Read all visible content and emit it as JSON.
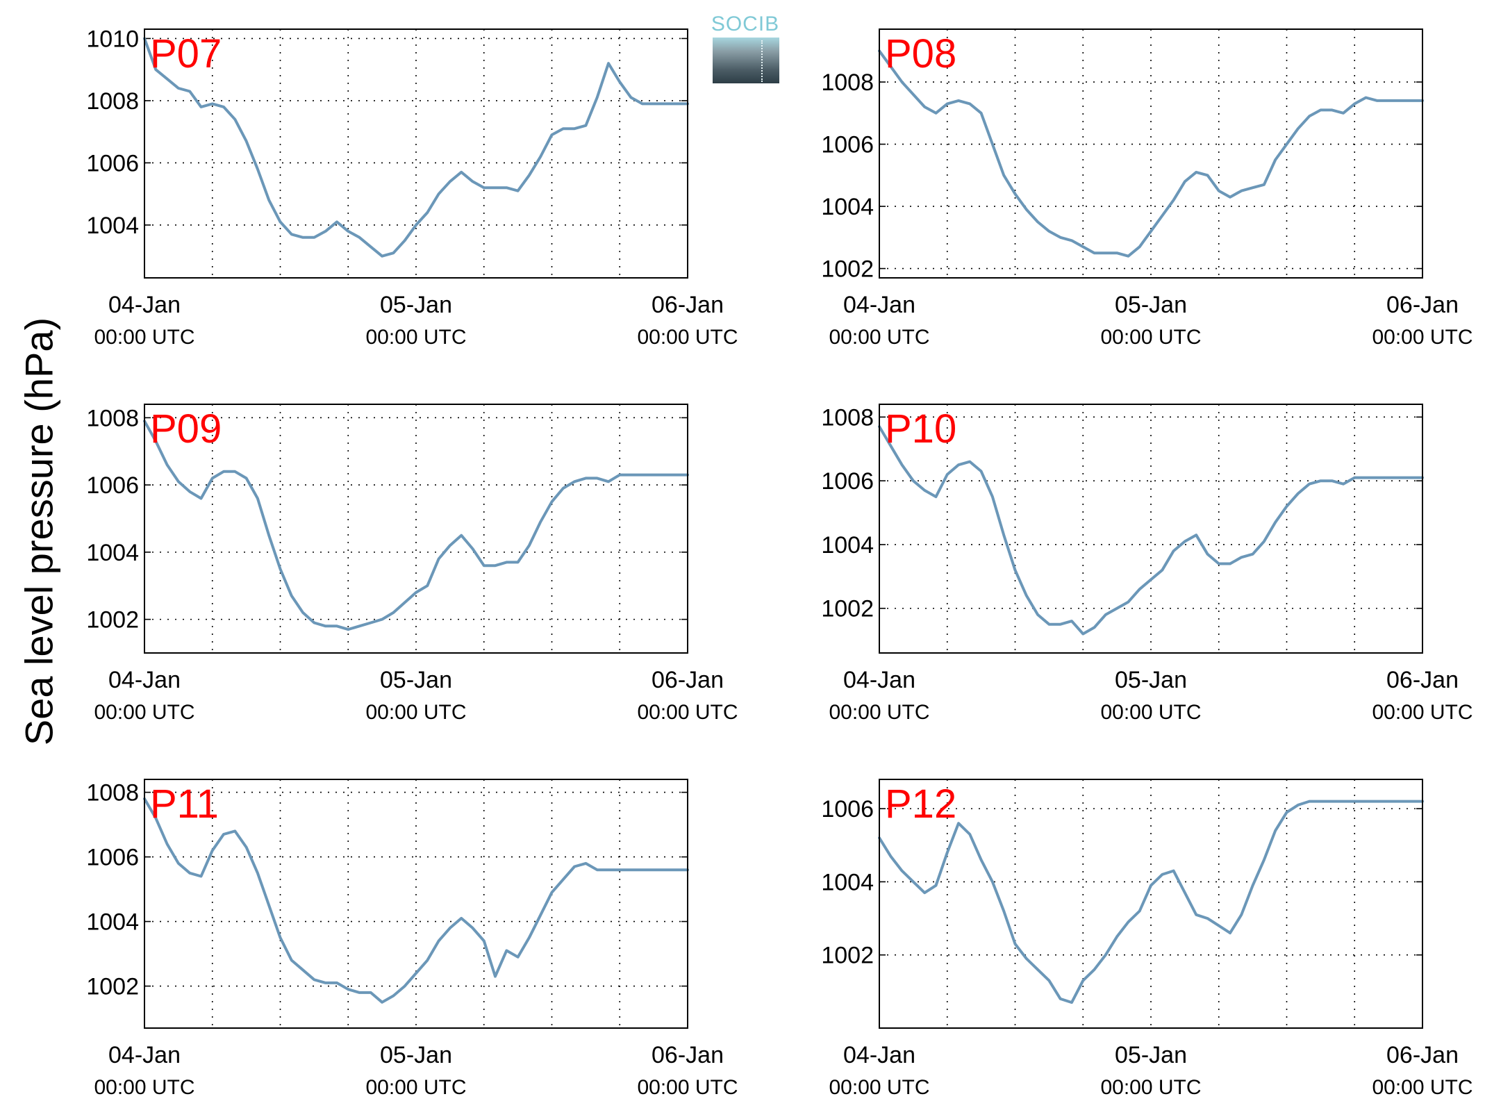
{
  "figure": {
    "ylabel": "Sea level pressure (hPa)",
    "logo_text": "SOCIB",
    "line_color": "#6b97b8",
    "label_color": "#ff0000"
  },
  "chart_data": [
    {
      "type": "line",
      "name": "P07",
      "ylim": [
        1002.3,
        1010.3
      ],
      "yticks": [
        1004,
        1006,
        1008,
        1010
      ],
      "xlim": [
        0,
        48
      ],
      "grid": true,
      "xticks": [
        {
          "date": "04-Jan",
          "time": "00:00 UTC"
        },
        {
          "date": "05-Jan",
          "time": "00:00 UTC"
        },
        {
          "date": "06-Jan",
          "time": "00:00 UTC"
        }
      ],
      "x": [
        0,
        1,
        2,
        3,
        4,
        5,
        6,
        7,
        8,
        9,
        10,
        11,
        12,
        13,
        14,
        15,
        16,
        17,
        18,
        19,
        20,
        21,
        22,
        23,
        24,
        25,
        26,
        27,
        28,
        29,
        30,
        31,
        32,
        33,
        34,
        35,
        36,
        37,
        38,
        39,
        40,
        41,
        42,
        43,
        44,
        44.5,
        45,
        45.5,
        46,
        47,
        48
      ],
      "y": [
        1010,
        1009,
        1008.7,
        1008.4,
        1008.3,
        1007.8,
        1007.9,
        1007.8,
        1007.4,
        1006.7,
        1005.8,
        1004.8,
        1004.1,
        1003.7,
        1003.6,
        1003.6,
        1003.8,
        1004.1,
        1003.8,
        1003.6,
        1003.3,
        1003,
        1003.1,
        1003.5,
        1004,
        1004.4,
        1005,
        1005.4,
        1005.7,
        1005.4,
        1005.2,
        1005.2,
        1005.2,
        1005.1,
        1005.6,
        1006.2,
        1006.9,
        1007.1,
        1007.1,
        1007.2,
        1008.1,
        1009.2,
        1008.6,
        1008.1,
        1007.9,
        1007.9,
        1007.9,
        1007.9,
        1007.9,
        1007.9,
        1007.9
      ]
    },
    {
      "type": "line",
      "name": "P08",
      "ylim": [
        1001.7,
        1009.7
      ],
      "yticks": [
        1002,
        1004,
        1006,
        1008
      ],
      "xlim": [
        0,
        48
      ],
      "grid": true,
      "xticks": [
        {
          "date": "04-Jan",
          "time": "00:00 UTC"
        },
        {
          "date": "05-Jan",
          "time": "00:00 UTC"
        },
        {
          "date": "06-Jan",
          "time": "00:00 UTC"
        }
      ],
      "x": [
        0,
        1,
        2,
        3,
        4,
        5,
        6,
        7,
        8,
        9,
        10,
        11,
        12,
        13,
        14,
        15,
        16,
        17,
        18,
        19,
        20,
        21,
        22,
        23,
        24,
        25,
        26,
        27,
        28,
        29,
        30,
        31,
        32,
        33,
        34,
        35,
        36,
        37,
        38,
        39,
        40,
        41,
        42,
        43,
        44,
        45,
        46,
        47,
        48
      ],
      "y": [
        1009,
        1008.5,
        1008,
        1007.6,
        1007.2,
        1007,
        1007.3,
        1007.4,
        1007.3,
        1007,
        1006,
        1005,
        1004.4,
        1003.9,
        1003.5,
        1003.2,
        1003,
        1002.9,
        1002.7,
        1002.5,
        1002.5,
        1002.5,
        1002.4,
        1002.7,
        1003.2,
        1003.7,
        1004.2,
        1004.8,
        1005.1,
        1005,
        1004.5,
        1004.3,
        1004.5,
        1004.6,
        1004.7,
        1005.5,
        1006,
        1006.5,
        1006.9,
        1007.1,
        1007.1,
        1007,
        1007.3,
        1007.5,
        1007.4,
        1007.4,
        1007.4,
        1007.4,
        1007.4
      ]
    },
    {
      "type": "line",
      "name": "P09",
      "ylim": [
        1001,
        1008.4
      ],
      "yticks": [
        1002,
        1004,
        1006,
        1008
      ],
      "xlim": [
        0,
        48
      ],
      "grid": true,
      "xticks": [
        {
          "date": "04-Jan",
          "time": "00:00 UTC"
        },
        {
          "date": "05-Jan",
          "time": "00:00 UTC"
        },
        {
          "date": "06-Jan",
          "time": "00:00 UTC"
        }
      ],
      "x": [
        0,
        1,
        2,
        3,
        4,
        5,
        6,
        7,
        8,
        9,
        10,
        11,
        12,
        13,
        14,
        15,
        16,
        17,
        18,
        19,
        20,
        21,
        22,
        23,
        24,
        25,
        26,
        27,
        28,
        29,
        30,
        31,
        32,
        33,
        34,
        35,
        36,
        37,
        38,
        39,
        40,
        41,
        42,
        43,
        44,
        45,
        46,
        47,
        48
      ],
      "y": [
        1007.9,
        1007.3,
        1006.6,
        1006.1,
        1005.8,
        1005.6,
        1006.2,
        1006.4,
        1006.4,
        1006.2,
        1005.6,
        1004.5,
        1003.5,
        1002.7,
        1002.2,
        1001.9,
        1001.8,
        1001.8,
        1001.7,
        1001.8,
        1001.9,
        1002,
        1002.2,
        1002.5,
        1002.8,
        1003,
        1003.8,
        1004.2,
        1004.5,
        1004.1,
        1003.6,
        1003.6,
        1003.7,
        1003.7,
        1004.2,
        1004.9,
        1005.5,
        1005.9,
        1006.1,
        1006.2,
        1006.2,
        1006.1,
        1006.3,
        1006.3,
        1006.3,
        1006.3,
        1006.3,
        1006.3,
        1006.3
      ]
    },
    {
      "type": "line",
      "name": "P10",
      "ylim": [
        1000.6,
        1008.4
      ],
      "yticks": [
        1002,
        1004,
        1006,
        1008
      ],
      "xlim": [
        0,
        48
      ],
      "grid": true,
      "xticks": [
        {
          "date": "04-Jan",
          "time": "00:00 UTC"
        },
        {
          "date": "05-Jan",
          "time": "00:00 UTC"
        },
        {
          "date": "06-Jan",
          "time": "00:00 UTC"
        }
      ],
      "x": [
        0,
        1,
        2,
        3,
        4,
        5,
        6,
        7,
        8,
        9,
        10,
        11,
        12,
        13,
        14,
        15,
        16,
        17,
        18,
        19,
        20,
        21,
        22,
        23,
        24,
        25,
        26,
        27,
        28,
        29,
        30,
        31,
        32,
        33,
        34,
        35,
        36,
        37,
        38,
        39,
        40,
        41,
        42,
        43,
        44,
        45,
        46,
        47,
        48
      ],
      "y": [
        1007.7,
        1007.1,
        1006.5,
        1006,
        1005.7,
        1005.5,
        1006.2,
        1006.5,
        1006.6,
        1006.3,
        1005.5,
        1004.3,
        1003.2,
        1002.4,
        1001.8,
        1001.5,
        1001.5,
        1001.6,
        1001.2,
        1001.4,
        1001.8,
        1002,
        1002.2,
        1002.6,
        1002.9,
        1003.2,
        1003.8,
        1004.1,
        1004.3,
        1003.7,
        1003.4,
        1003.4,
        1003.6,
        1003.7,
        1004.1,
        1004.7,
        1005.2,
        1005.6,
        1005.9,
        1006,
        1006,
        1005.9,
        1006.1,
        1006.1,
        1006.1,
        1006.1,
        1006.1,
        1006.1,
        1006.1
      ]
    },
    {
      "type": "line",
      "name": "P11",
      "ylim": [
        1000.7,
        1008.4
      ],
      "yticks": [
        1002,
        1004,
        1006,
        1008
      ],
      "xlim": [
        0,
        48
      ],
      "grid": true,
      "xticks": [
        {
          "date": "04-Jan",
          "time": "00:00 UTC"
        },
        {
          "date": "05-Jan",
          "time": "00:00 UTC"
        },
        {
          "date": "06-Jan",
          "time": "00:00 UTC"
        }
      ],
      "x": [
        0,
        1,
        2,
        3,
        4,
        5,
        6,
        7,
        8,
        9,
        10,
        11,
        12,
        13,
        14,
        15,
        16,
        17,
        18,
        19,
        20,
        21,
        22,
        23,
        24,
        25,
        26,
        27,
        28,
        29,
        30,
        31,
        32,
        33,
        34,
        35,
        36,
        37,
        38,
        39,
        40,
        41,
        42,
        43,
        44,
        45,
        46,
        47,
        48
      ],
      "y": [
        1007.8,
        1007.2,
        1006.4,
        1005.8,
        1005.5,
        1005.4,
        1006.2,
        1006.7,
        1006.8,
        1006.3,
        1005.5,
        1004.5,
        1003.5,
        1002.8,
        1002.5,
        1002.2,
        1002.1,
        1002.1,
        1001.9,
        1001.8,
        1001.8,
        1001.5,
        1001.7,
        1002,
        1002.4,
        1002.8,
        1003.4,
        1003.8,
        1004.1,
        1003.8,
        1003.4,
        1002.3,
        1003.1,
        1002.9,
        1003.5,
        1004.2,
        1004.9,
        1005.3,
        1005.7,
        1005.8,
        1005.6,
        1005.6,
        1005.6,
        1005.6,
        1005.6,
        1005.6,
        1005.6,
        1005.6,
        1005.6
      ]
    },
    {
      "type": "line",
      "name": "P12",
      "ylim": [
        1000.0,
        1006.8
      ],
      "yticks": [
        1002,
        1004,
        1006
      ],
      "xlim": [
        0,
        48
      ],
      "grid": true,
      "xticks": [
        {
          "date": "04-Jan",
          "time": "00:00 UTC"
        },
        {
          "date": "05-Jan",
          "time": "00:00 UTC"
        },
        {
          "date": "06-Jan",
          "time": "00:00 UTC"
        }
      ],
      "x": [
        0,
        1,
        2,
        3,
        4,
        5,
        6,
        7,
        8,
        9,
        10,
        11,
        12,
        13,
        14,
        15,
        16,
        17,
        18,
        19,
        20,
        21,
        22,
        23,
        24,
        25,
        26,
        27,
        28,
        29,
        30,
        31,
        32,
        33,
        34,
        35,
        36,
        37,
        38,
        39,
        40,
        41,
        42,
        43,
        44,
        45,
        46,
        47,
        48
      ],
      "y": [
        1005.2,
        1004.7,
        1004.3,
        1004,
        1003.7,
        1003.9,
        1004.8,
        1005.6,
        1005.3,
        1004.6,
        1004,
        1003.2,
        1002.3,
        1001.9,
        1001.6,
        1001.3,
        1000.8,
        1000.7,
        1001.3,
        1001.6,
        1002,
        1002.5,
        1002.9,
        1003.2,
        1003.9,
        1004.2,
        1004.3,
        1003.7,
        1003.1,
        1003,
        1002.8,
        1002.6,
        1003.1,
        1003.9,
        1004.6,
        1005.4,
        1005.9,
        1006.1,
        1006.2,
        1006.2,
        1006.2,
        1006.2,
        1006.2,
        1006.2,
        1006.2,
        1006.2,
        1006.2,
        1006.2,
        1006.2
      ]
    }
  ]
}
